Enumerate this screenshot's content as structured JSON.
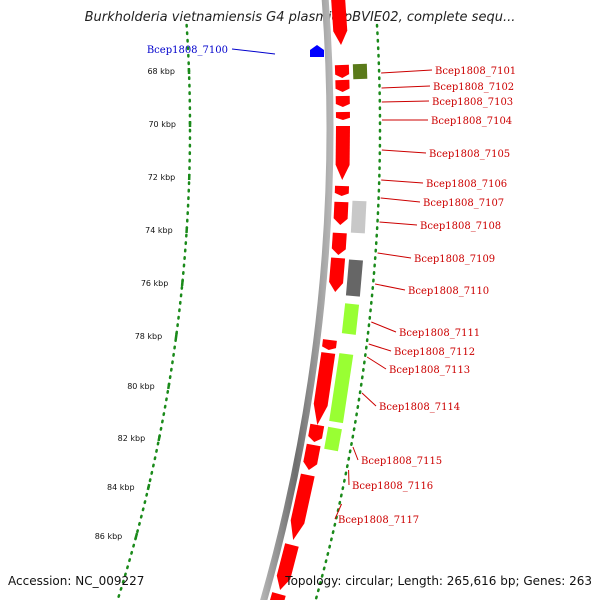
{
  "title": "Burkholderia vietnamiensis G4 plasmid pBVIE02, complete sequ...",
  "footer": {
    "accession": "Accession: NC_009227",
    "summary": "Topology: circular; Length: 265,616 bp; Genes: 263"
  },
  "colors": {
    "backbone": "#8a8a8a",
    "tick": "#1a8a1a",
    "gene_red": "#ff0000",
    "gene_lime": "#99ff33",
    "gene_olive": "#5a7a1a",
    "gene_gray": "#666666",
    "gene_lightgray": "#c8c8c8",
    "gene_blue": "#0000ff",
    "label_red": "#cc0000",
    "label_blue": "#0000cc"
  },
  "kbp_ticks": [
    "68 kbp",
    "70 kbp",
    "72 kbp",
    "74 kbp",
    "76 kbp",
    "78 kbp",
    "80 kbp",
    "82 kbp",
    "84 kbp",
    "86 kbp"
  ],
  "gene_labels": [
    {
      "text": "Bcep1808_7100",
      "color": "blue"
    },
    {
      "text": "Bcep1808_7101",
      "color": "red"
    },
    {
      "text": "Bcep1808_7102",
      "color": "red"
    },
    {
      "text": "Bcep1808_7103",
      "color": "red"
    },
    {
      "text": "Bcep1808_7104",
      "color": "red"
    },
    {
      "text": "Bcep1808_7105",
      "color": "red"
    },
    {
      "text": "Bcep1808_7106",
      "color": "red"
    },
    {
      "text": "Bcep1808_7107",
      "color": "red"
    },
    {
      "text": "Bcep1808_7108",
      "color": "red"
    },
    {
      "text": "Bcep1808_7109",
      "color": "red"
    },
    {
      "text": "Bcep1808_7110",
      "color": "red"
    },
    {
      "text": "Bcep1808_7111",
      "color": "red"
    },
    {
      "text": "Bcep1808_7112",
      "color": "red"
    },
    {
      "text": "Bcep1808_7113",
      "color": "red"
    },
    {
      "text": "Bcep1808_7114",
      "color": "red"
    },
    {
      "text": "Bcep1808_7115",
      "color": "red"
    },
    {
      "text": "Bcep1808_7116",
      "color": "red"
    },
    {
      "text": "Bcep1808_7117",
      "color": "red"
    }
  ]
}
